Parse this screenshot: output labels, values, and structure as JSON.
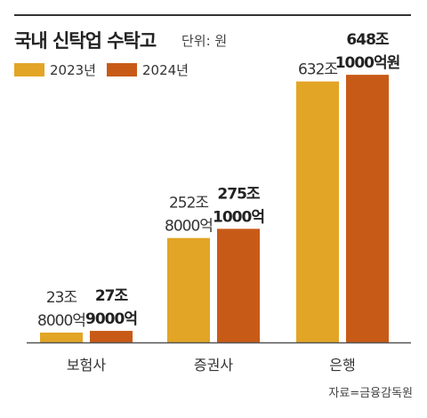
{
  "header": {
    "title": "국내 신탁업 수탁고",
    "unit": "단위: 원"
  },
  "footer": {
    "source": "자료=금융감독원"
  },
  "colors": {
    "y2023": "#E3A526",
    "y2024": "#C85A17",
    "axis": "#555555"
  },
  "chart_data": {
    "type": "bar",
    "title": "국내 신탁업 수탁고",
    "unit": "단위: 원",
    "categories": [
      "보험사",
      "증권사",
      "은행"
    ],
    "series": [
      {
        "name": "2023년",
        "values": [
          23.8,
          252.8,
          632
        ],
        "labels": [
          [
            "23조",
            "8000억"
          ],
          [
            "252조",
            "8000억"
          ],
          [
            "632조"
          ]
        ]
      },
      {
        "name": "2024년",
        "values": [
          27.9,
          275.1,
          648.1
        ],
        "labels": [
          [
            "27조",
            "9000억"
          ],
          [
            "275조",
            "1000억"
          ],
          [
            "648조",
            "1000억원"
          ]
        ]
      }
    ],
    "ylim": [
      0,
      700
    ],
    "legend_position": "top-left",
    "grid": false
  }
}
